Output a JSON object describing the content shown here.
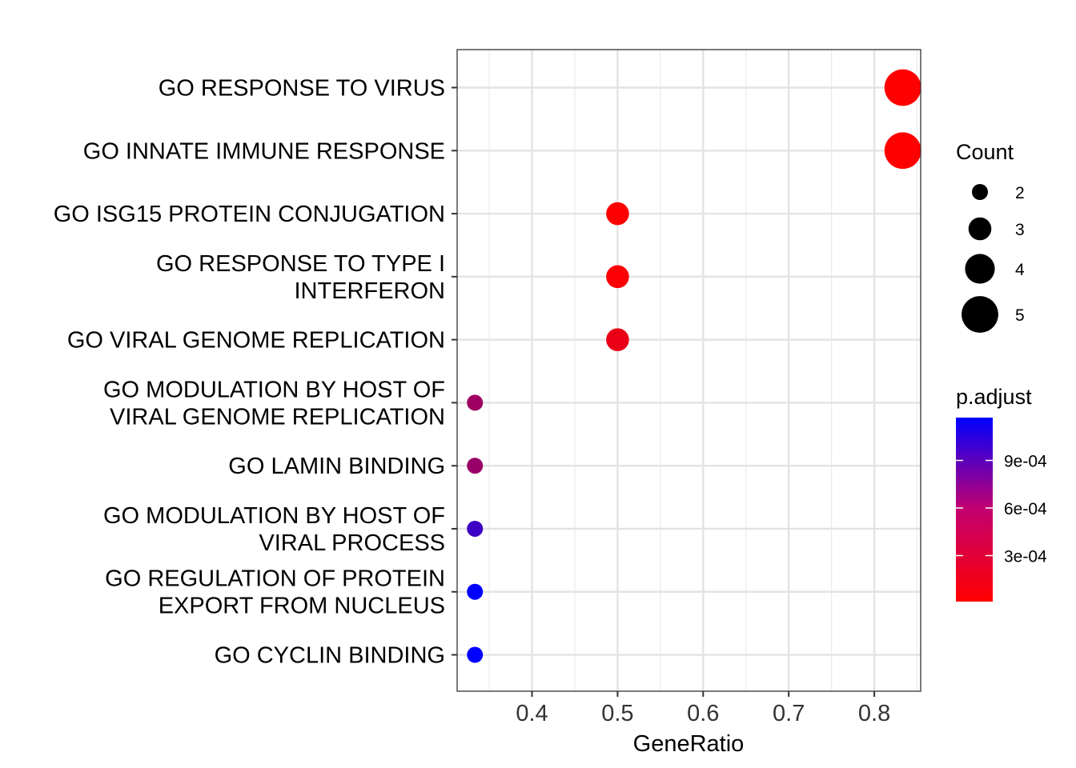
{
  "chart_data": {
    "type": "scatter",
    "xlabel": "GeneRatio",
    "x_ticks": [
      "0.4",
      "0.5",
      "0.6",
      "0.7",
      "0.8"
    ],
    "x_tick_values": [
      0.4,
      0.5,
      0.6,
      0.7,
      0.8
    ],
    "xlim": [
      0.3125,
      0.8542
    ],
    "grid": true,
    "categories": [
      [
        "GO RESPONSE TO VIRUS"
      ],
      [
        "GO INNATE IMMUNE RESPONSE"
      ],
      [
        "GO ISG15 PROTEIN CONJUGATION"
      ],
      [
        "GO RESPONSE TO TYPE I",
        "INTERFERON"
      ],
      [
        "GO VIRAL GENOME REPLICATION"
      ],
      [
        "GO MODULATION BY HOST OF",
        "VIRAL GENOME REPLICATION"
      ],
      [
        "GO LAMIN BINDING"
      ],
      [
        "GO MODULATION BY HOST OF",
        "VIRAL PROCESS"
      ],
      [
        "GO REGULATION OF PROTEIN",
        "EXPORT FROM NUCLEUS"
      ],
      [
        "GO CYCLIN BINDING"
      ]
    ],
    "points": [
      {
        "x": 0.8333,
        "count": 5,
        "p_adjust": 1e-05
      },
      {
        "x": 0.8333,
        "count": 5,
        "p_adjust": 1e-05
      },
      {
        "x": 0.5,
        "count": 3,
        "p_adjust": 2e-05
      },
      {
        "x": 0.5,
        "count": 3,
        "p_adjust": 3e-05
      },
      {
        "x": 0.5,
        "count": 3,
        "p_adjust": 0.00011
      },
      {
        "x": 0.3333,
        "count": 2,
        "p_adjust": 0.00045
      },
      {
        "x": 0.3333,
        "count": 2,
        "p_adjust": 0.00048
      },
      {
        "x": 0.3333,
        "count": 2,
        "p_adjust": 0.0009
      },
      {
        "x": 0.3333,
        "count": 2,
        "p_adjust": 0.00117
      },
      {
        "x": 0.3333,
        "count": 2,
        "p_adjust": 0.00117
      }
    ],
    "size_legend": {
      "title": "Count",
      "labels": [
        "2",
        "3",
        "4",
        "5"
      ],
      "values": [
        2,
        3,
        4,
        5
      ]
    },
    "color_legend": {
      "title": "p.adjust",
      "labels": [
        "9e-04",
        "6e-04",
        "3e-04"
      ],
      "values": [
        0.0009,
        0.0006,
        0.0003
      ],
      "range": [
        1e-05,
        0.00117
      ],
      "low_color": "#ff0000",
      "high_color": "#0000ff"
    }
  }
}
